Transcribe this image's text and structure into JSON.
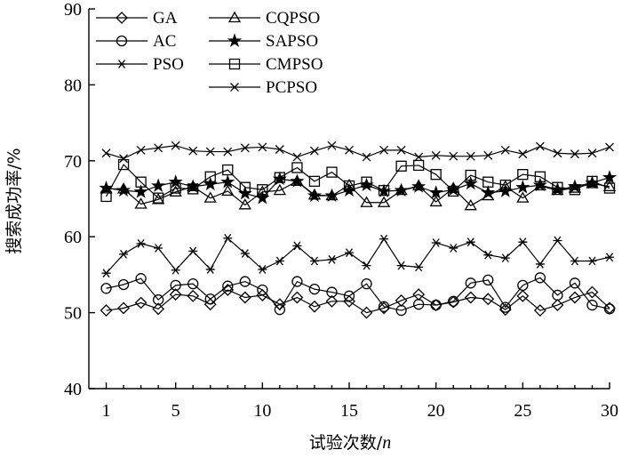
{
  "chart_data": {
    "type": "line",
    "title": "",
    "xlabel": "试验次数/",
    "xlabel_var": "n",
    "ylabel": "搜索成功率/%",
    "xlim": [
      0,
      30
    ],
    "ylim": [
      40,
      90
    ],
    "x_ticks": [
      1,
      5,
      10,
      15,
      20,
      25,
      30
    ],
    "y_ticks": [
      40,
      50,
      60,
      70,
      80,
      90
    ],
    "x": [
      1,
      2,
      3,
      4,
      5,
      6,
      7,
      8,
      9,
      10,
      11,
      12,
      13,
      14,
      15,
      16,
      17,
      18,
      19,
      20,
      21,
      22,
      23,
      24,
      25,
      26,
      27,
      28,
      29,
      30
    ],
    "legend_position": "top-left",
    "series": [
      {
        "name": "GA",
        "marker": "diamond",
        "values": [
          50.3,
          50.6,
          51.3,
          50.5,
          52.4,
          52.2,
          51.1,
          53.0,
          52.0,
          52.3,
          51.1,
          52.0,
          50.8,
          51.5,
          51.5,
          50.0,
          50.6,
          51.6,
          52.4,
          51.0,
          51.4,
          52.0,
          51.8,
          50.4,
          52.2,
          50.3,
          51.0,
          52.0,
          52.7,
          50.6
        ]
      },
      {
        "name": "AC",
        "marker": "circle",
        "values": [
          53.2,
          53.7,
          54.5,
          51.7,
          53.6,
          53.8,
          51.8,
          53.5,
          54.1,
          53.0,
          50.4,
          54.1,
          53.1,
          52.7,
          52.2,
          53.8,
          50.8,
          50.3,
          51.1,
          51.0,
          51.5,
          53.9,
          54.3,
          50.7,
          53.6,
          54.6,
          52.3,
          53.9,
          51.0,
          50.5
        ]
      },
      {
        "name": "PSO",
        "marker": "asterisk",
        "values": [
          55.2,
          57.7,
          59.1,
          58.5,
          55.6,
          58.1,
          55.7,
          59.8,
          57.8,
          55.7,
          56.8,
          58.8,
          56.8,
          57.0,
          57.9,
          56.2,
          59.7,
          56.2,
          56.0,
          59.2,
          58.5,
          59.3,
          57.6,
          57.2,
          59.3,
          56.4,
          59.5,
          56.8,
          56.8,
          57.3
        ]
      },
      {
        "name": "CQPSO",
        "marker": "triangle",
        "values": [
          66.3,
          66.3,
          64.3,
          64.9,
          65.9,
          66.6,
          65.1,
          66.0,
          64.2,
          65.9,
          66.1,
          67.3,
          65.5,
          65.4,
          66.8,
          64.5,
          64.5,
          66.1,
          66.7,
          64.6,
          66.4,
          64.1,
          65.4,
          66.6,
          65.1,
          66.7,
          66.1,
          66.4,
          67.0,
          66.6
        ]
      },
      {
        "name": "SAPSO",
        "marker": "star",
        "values": [
          66.4,
          66.1,
          65.9,
          66.7,
          67.2,
          66.6,
          66.9,
          67.2,
          65.7,
          65.1,
          67.6,
          67.3,
          65.4,
          65.4,
          66.1,
          66.8,
          66.0,
          66.1,
          66.6,
          65.8,
          66.2,
          67.0,
          65.8,
          66.0,
          66.5,
          66.8,
          66.2,
          66.6,
          67.1,
          67.8
        ]
      },
      {
        "name": "CMPSO",
        "marker": "square",
        "values": [
          65.3,
          69.5,
          67.2,
          65.1,
          66.4,
          66.3,
          67.9,
          68.8,
          66.5,
          66.2,
          67.8,
          69.1,
          67.3,
          68.5,
          66.7,
          67.2,
          66.1,
          69.3,
          69.4,
          68.2,
          66.0,
          68.1,
          67.2,
          66.8,
          68.2,
          67.9,
          66.5,
          66.2,
          67.3,
          66.4
        ]
      },
      {
        "name": "PCPSO",
        "marker": "x",
        "values": [
          71.0,
          70.3,
          71.4,
          71.7,
          72.0,
          71.3,
          71.2,
          71.2,
          71.7,
          71.8,
          71.5,
          70.5,
          71.3,
          72.0,
          71.4,
          70.5,
          71.4,
          71.4,
          70.5,
          70.7,
          70.6,
          70.6,
          70.7,
          71.4,
          70.9,
          71.9,
          71.0,
          70.9,
          71.0,
          71.8
        ]
      }
    ]
  }
}
